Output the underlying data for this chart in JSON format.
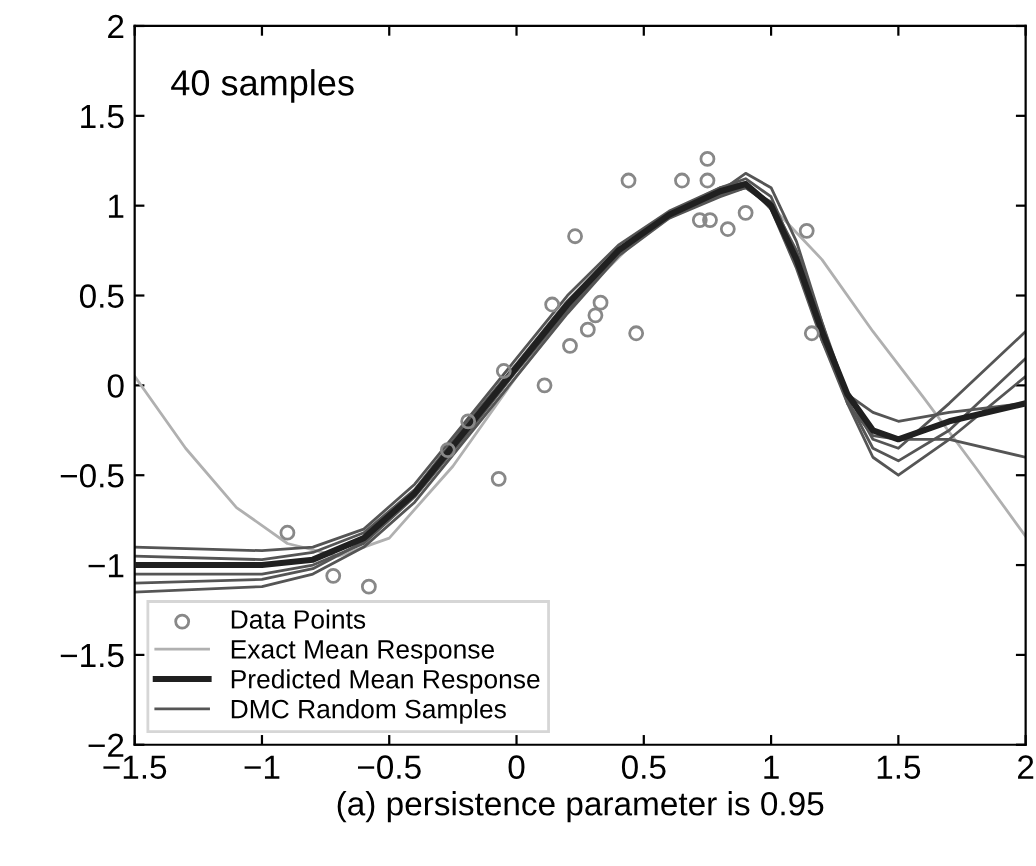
{
  "chart_data": {
    "type": "line",
    "xlabel": "(a) persistence parameter is 0.95",
    "annotations": [
      "40 samples"
    ],
    "xlim": [
      -1.5,
      2
    ],
    "ylim": [
      -2,
      2
    ],
    "xticks": [
      -1.5,
      -1,
      -0.5,
      0,
      0.5,
      1,
      1.5,
      2
    ],
    "yticks": [
      -2,
      -1.5,
      -1,
      -0.5,
      0,
      0.5,
      1,
      1.5,
      2
    ],
    "grid": false,
    "legend": "bottom left",
    "series": [
      {
        "name": "Data Points",
        "type": "scatter",
        "color": "#888888",
        "marker": "circle",
        "x": [
          0.44,
          0.65,
          0.75,
          0.75,
          0.23,
          0.72,
          0.76,
          0.83,
          0.9,
          1.14,
          1.16,
          0.14,
          0.33,
          0.31,
          0.28,
          0.21,
          0.47,
          -0.05,
          0.11,
          -0.19,
          -0.27,
          -0.07,
          -0.9,
          -0.72,
          -0.58
        ],
        "values": [
          1.14,
          1.14,
          1.26,
          1.14,
          0.83,
          0.92,
          0.92,
          0.87,
          0.96,
          0.86,
          0.29,
          0.45,
          0.46,
          0.39,
          0.31,
          0.22,
          0.29,
          0.08,
          0.0,
          -0.2,
          -0.36,
          -0.52,
          -0.82,
          -1.06,
          -1.12
        ]
      },
      {
        "name": "Exact Mean Response",
        "color": "#b0b0b0",
        "marker": "none",
        "line_style": "solid",
        "x": [
          -1.5,
          -1.3,
          -1.1,
          -0.9,
          -0.7,
          -0.5,
          -0.25,
          0,
          0.25,
          0.5,
          0.75,
          0.9,
          1.0,
          1.2,
          1.4,
          1.6,
          1.8,
          2.0
        ],
        "values": [
          0.05,
          -0.35,
          -0.68,
          -0.88,
          -0.95,
          -0.85,
          -0.45,
          0.05,
          0.5,
          0.85,
          1.05,
          1.1,
          1.0,
          0.7,
          0.3,
          -0.07,
          -0.45,
          -0.84
        ]
      },
      {
        "name": "Predicted Mean Response",
        "color": "#202020",
        "marker": "none",
        "line_style": "solid",
        "x": [
          -1.5,
          -1.0,
          -0.8,
          -0.6,
          -0.4,
          -0.2,
          0,
          0.2,
          0.4,
          0.6,
          0.8,
          0.9,
          1.0,
          1.1,
          1.2,
          1.3,
          1.4,
          1.5,
          1.7,
          2.0
        ],
        "values": [
          -1.0,
          -1.0,
          -0.97,
          -0.85,
          -0.6,
          -0.25,
          0.1,
          0.45,
          0.75,
          0.95,
          1.08,
          1.12,
          1.0,
          0.7,
          0.3,
          -0.05,
          -0.25,
          -0.3,
          -0.2,
          -0.1
        ]
      },
      {
        "name": "DMC Random Samples",
        "color": "#555555",
        "marker": "none",
        "line_style": "solid",
        "x": [
          -1.5,
          -1.0,
          -0.8,
          -0.6,
          -0.4,
          -0.2,
          0,
          0.2,
          0.4,
          0.6,
          0.8,
          0.9,
          1.0,
          1.1,
          1.2,
          1.3,
          1.4,
          1.5,
          1.7,
          2.0
        ],
        "values": [
          -1.15,
          -1.12,
          -1.05,
          -0.9,
          -0.65,
          -0.3,
          0.05,
          0.4,
          0.72,
          0.93,
          1.05,
          1.1,
          1.02,
          0.75,
          0.35,
          -0.1,
          -0.4,
          -0.5,
          -0.3,
          0.05
        ]
      },
      {
        "color": "#555555",
        "marker": "none",
        "line_style": "solid",
        "x": [
          -1.5,
          -1.0,
          -0.8,
          -0.6,
          -0.4,
          -0.2,
          0,
          0.2,
          0.4,
          0.6,
          0.8,
          0.9,
          1.0,
          1.1,
          1.2,
          1.3,
          1.4,
          1.5,
          1.7,
          2.0
        ],
        "values": [
          -0.9,
          -0.92,
          -0.9,
          -0.8,
          -0.55,
          -0.2,
          0.15,
          0.5,
          0.78,
          0.97,
          1.1,
          1.15,
          1.05,
          0.72,
          0.25,
          -0.05,
          -0.15,
          -0.2,
          -0.15,
          -0.1
        ]
      },
      {
        "color": "#555555",
        "marker": "none",
        "line_style": "solid",
        "x": [
          -1.5,
          -1.0,
          -0.8,
          -0.6,
          -0.4,
          -0.2,
          0,
          0.2,
          0.4,
          0.6,
          0.8,
          0.9,
          1.0,
          1.1,
          1.2,
          1.3,
          1.4,
          1.5,
          1.7,
          2.0
        ],
        "values": [
          -1.05,
          -1.05,
          -1.0,
          -0.88,
          -0.62,
          -0.28,
          0.08,
          0.42,
          0.73,
          0.94,
          1.08,
          1.18,
          1.1,
          0.8,
          0.35,
          -0.05,
          -0.3,
          -0.35,
          -0.1,
          0.3
        ]
      },
      {
        "color": "#555555",
        "marker": "none",
        "line_style": "solid",
        "x": [
          -1.5,
          -1.0,
          -0.8,
          -0.6,
          -0.4,
          -0.2,
          0,
          0.2,
          0.4,
          0.6,
          0.8,
          0.9,
          1.0,
          1.1,
          1.2,
          1.3,
          1.4,
          1.5,
          1.7,
          2.0
        ],
        "values": [
          -0.95,
          -0.97,
          -0.93,
          -0.82,
          -0.58,
          -0.22,
          0.12,
          0.47,
          0.76,
          0.96,
          1.1,
          1.13,
          0.98,
          0.65,
          0.25,
          -0.1,
          -0.28,
          -0.3,
          -0.3,
          -0.4
        ]
      },
      {
        "color": "#555555",
        "marker": "none",
        "line_style": "solid",
        "x": [
          -1.5,
          -1.0,
          -0.8,
          -0.6,
          -0.4,
          -0.2,
          0,
          0.2,
          0.4,
          0.6,
          0.8,
          0.9,
          1.0,
          1.1,
          1.2,
          1.3,
          1.4,
          1.5,
          1.7,
          2.0
        ],
        "values": [
          -1.1,
          -1.08,
          -1.02,
          -0.87,
          -0.6,
          -0.27,
          0.1,
          0.43,
          0.74,
          0.94,
          1.06,
          1.1,
          1.0,
          0.72,
          0.3,
          -0.08,
          -0.35,
          -0.42,
          -0.25,
          0.15
        ]
      }
    ]
  }
}
